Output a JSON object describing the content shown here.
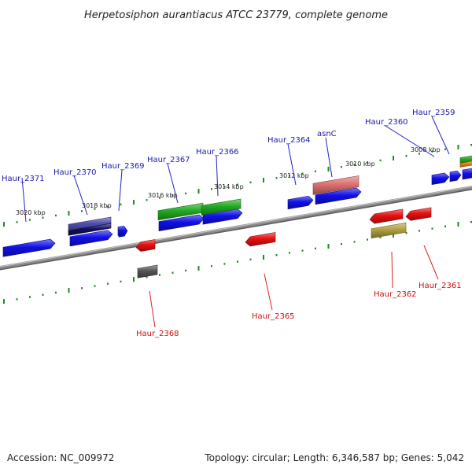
{
  "title": "Herpetosiphon aurantiacus ATCC 23779, complete genome",
  "footer": {
    "accession": "Accession: NC_009972",
    "summary": "Topology: circular; Length: 6,346,587 bp; Genes: 5,042"
  },
  "colors": {
    "backbone": "#8a8a8a",
    "tick": "#1e8a1e",
    "label_forward": "#1a1aaa",
    "label_reverse": "#cc1010",
    "label_line_forward": "#2222cc",
    "label_line_reverse": "#dd2222",
    "text": "#222222"
  },
  "kbp_ticks": [
    "3008 kbp",
    "3010 kbp",
    "3012 kbp",
    "3014 kbp",
    "3016 kbp",
    "3018 kbp",
    "3020 kbp"
  ],
  "genes": [
    {
      "label": "Haur_2359",
      "strand": "forward",
      "color": "#1010e8"
    },
    {
      "label": "Haur_2360",
      "strand": "forward",
      "color": "#1010e8"
    },
    {
      "label": "asnC",
      "strand": "forward",
      "color": "#1010e8"
    },
    {
      "label": "Haur_2364",
      "strand": "forward",
      "color": "#1010e8"
    },
    {
      "label": "Haur_2366",
      "strand": "forward",
      "color": "#1010e8"
    },
    {
      "label": "Haur_2367",
      "strand": "forward",
      "color": "#1010e8"
    },
    {
      "label": "Haur_2369",
      "strand": "forward",
      "color": "#1010e8"
    },
    {
      "label": "Haur_2370",
      "strand": "forward",
      "color": "#1010e8"
    },
    {
      "label": "Haur_2371",
      "strand": "forward",
      "color": "#1010e8"
    },
    {
      "label": "Haur_2361",
      "strand": "reverse",
      "color": "#e81010"
    },
    {
      "label": "Haur_2362",
      "strand": "reverse",
      "color": "#e81010"
    },
    {
      "label": "Haur_2365",
      "strand": "reverse",
      "color": "#e81010"
    },
    {
      "label": "Haur_2368",
      "strand": "reverse",
      "color": "#e81010"
    }
  ],
  "features": [
    {
      "name": "cog-feature-green-top-right",
      "color": "#22aa22"
    },
    {
      "name": "cog-feature-orange-top-right",
      "color": "#f08010"
    },
    {
      "name": "cog-feature-pink",
      "color": "#e07070"
    },
    {
      "name": "cog-feature-green-3016",
      "color": "#22aa22"
    },
    {
      "name": "cog-feature-green-3014",
      "color": "#22aa22"
    },
    {
      "name": "cog-feature-purple",
      "color": "#5050b0"
    },
    {
      "name": "cog-feature-navy",
      "color": "#101060"
    },
    {
      "name": "cog-feature-olive",
      "color": "#b0a040"
    },
    {
      "name": "cog-feature-gray",
      "color": "#555555"
    },
    {
      "name": "blue-gene-2358",
      "color": "#1010e8"
    },
    {
      "name": "blue-gene-near-2359",
      "color": "#1010e8"
    },
    {
      "name": "blue-gene-right-edge",
      "color": "#1010e8"
    },
    {
      "name": "blue-gene-3012",
      "color": "#1010e8"
    },
    {
      "name": "blue-gene-small-3018",
      "color": "#1010e8"
    },
    {
      "name": "red-gene-small-3016",
      "color": "#e81010"
    }
  ]
}
